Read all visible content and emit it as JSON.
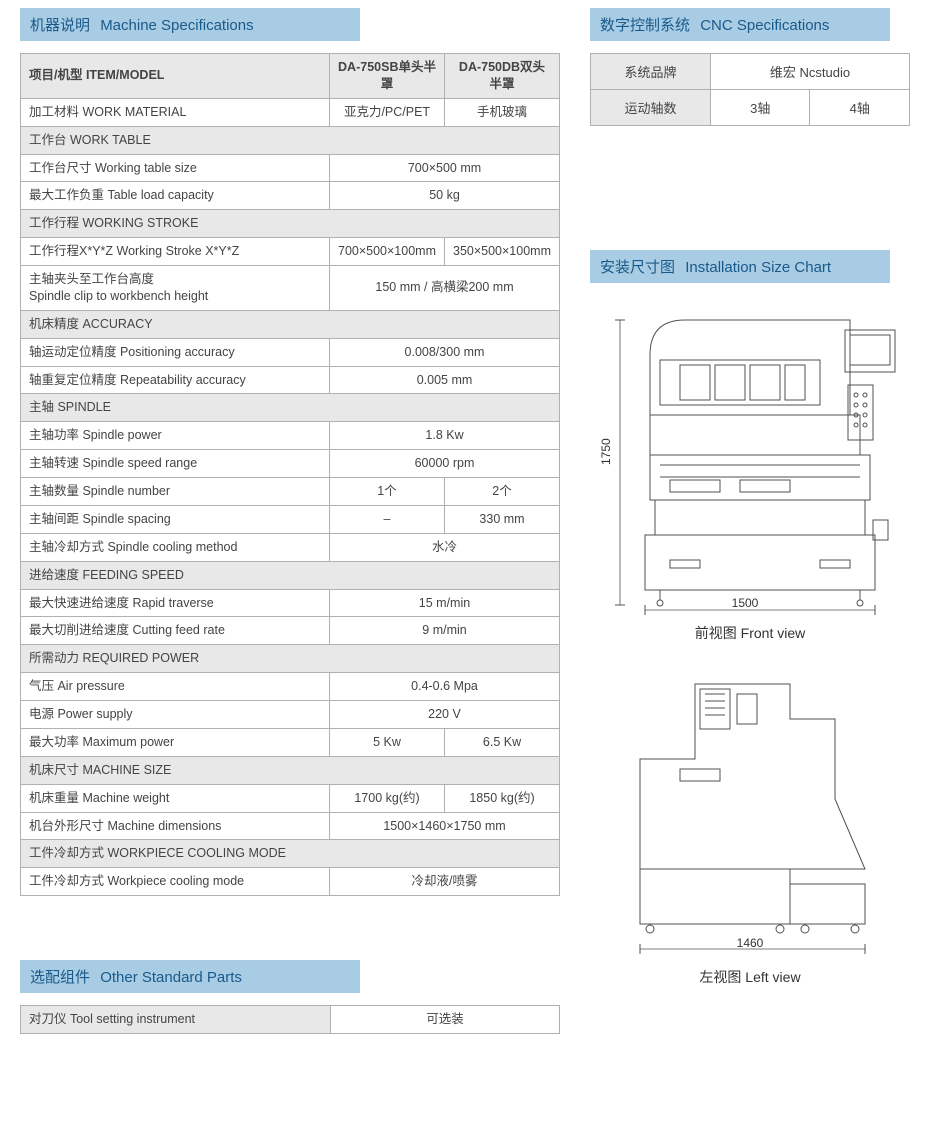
{
  "sections": {
    "machine_spec": {
      "cn": "机器说明",
      "en": "Machine Specifications"
    },
    "cnc_spec": {
      "cn": "数字控制系统",
      "en": "CNC Specifications"
    },
    "install_chart": {
      "cn": "安装尺寸图",
      "en": "Installation Size Chart"
    },
    "other_parts": {
      "cn": "选配组件",
      "en": "Other Standard Parts"
    }
  },
  "spec_table": {
    "header": {
      "col1": "项目/机型 ITEM/MODEL",
      "col2": "DA-750SB单头半罩",
      "col3": "DA-750DB双头半罩"
    },
    "rows": [
      {
        "type": "data",
        "label": "加工材料 WORK MATERIAL",
        "v1": "亚克力/PC/PET",
        "v2": "手机玻璃"
      },
      {
        "type": "section",
        "label": "工作台 WORK TABLE"
      },
      {
        "type": "merged",
        "label": "工作台尺寸 Working table size",
        "val": "700×500 mm"
      },
      {
        "type": "merged",
        "label": "最大工作负重 Table load capacity",
        "val": "50 kg"
      },
      {
        "type": "section",
        "label": "工作行程 WORKING STROKE"
      },
      {
        "type": "data",
        "label": "工作行程X*Y*Z   Working Stroke X*Y*Z",
        "v1": "700×500×100mm",
        "v2": "350×500×100mm"
      },
      {
        "type": "merged",
        "label": "主轴夹头至工作台高度\nSpindle clip to workbench height",
        "val": "150 mm / 高横梁200 mm"
      },
      {
        "type": "section",
        "label": "机床精度 ACCURACY"
      },
      {
        "type": "merged",
        "label": "轴运动定位精度 Positioning accuracy",
        "val": "0.008/300 mm"
      },
      {
        "type": "merged",
        "label": "轴重复定位精度 Repeatability accuracy",
        "val": "0.005 mm"
      },
      {
        "type": "section",
        "label": "主轴 SPINDLE"
      },
      {
        "type": "merged",
        "label": "主轴功率 Spindle power",
        "val": "1.8 Kw"
      },
      {
        "type": "merged",
        "label": "主轴转速 Spindle speed range",
        "val": "60000 rpm"
      },
      {
        "type": "data",
        "label": "主轴数量 Spindle number",
        "v1": "1个",
        "v2": "2个"
      },
      {
        "type": "data",
        "label": "主轴间距 Spindle spacing",
        "v1": "–",
        "v2": "330 mm"
      },
      {
        "type": "merged",
        "label": "主轴冷却方式 Spindle cooling method",
        "val": "水冷"
      },
      {
        "type": "section",
        "label": "进给速度 FEEDING SPEED"
      },
      {
        "type": "merged",
        "label": "最大快速进给速度 Rapid traverse",
        "val": "15 m/min"
      },
      {
        "type": "merged",
        "label": "最大切削进给速度 Cutting feed rate",
        "val": "9 m/min"
      },
      {
        "type": "section",
        "label": "所需动力 REQUIRED POWER"
      },
      {
        "type": "merged",
        "label": "气压 Air pressure",
        "val": "0.4-0.6 Mpa"
      },
      {
        "type": "merged",
        "label": "电源 Power supply",
        "val": "220 V"
      },
      {
        "type": "data",
        "label": "最大功率 Maximum power",
        "v1": "5 Kw",
        "v2": "6.5 Kw"
      },
      {
        "type": "section",
        "label": "机床尺寸 MACHINE SIZE"
      },
      {
        "type": "data",
        "label": "机床重量 Machine weight",
        "v1": "1700 kg(约)",
        "v2": "1850 kg(约)"
      },
      {
        "type": "merged",
        "label": "机台外形尺寸 Machine dimensions",
        "val": "1500×1460×1750 mm"
      },
      {
        "type": "section",
        "label": "工件冷却方式 WORKPIECE COOLING MODE"
      },
      {
        "type": "merged",
        "label": "工件冷却方式 Workpiece cooling mode",
        "val": "冷却液/喷雾"
      }
    ]
  },
  "other_parts_table": {
    "rows": [
      {
        "label": "对刀仪 Tool setting instrument",
        "val": "可选装"
      }
    ]
  },
  "cnc_table": {
    "rows": [
      {
        "label": "系统品牌",
        "vals": [
          "维宏 Ncstudio"
        ],
        "span": 2
      },
      {
        "label": "运动轴数",
        "vals": [
          "3轴",
          "4轴"
        ]
      }
    ]
  },
  "diagrams": {
    "front": {
      "caption": "前视图 Front view",
      "width_dim": "1500",
      "height_dim": "1750"
    },
    "left": {
      "caption": "左视图 Left view",
      "width_dim": "1460"
    }
  },
  "colors": {
    "header_bg": "#a8cce4",
    "header_text": "#1a5a8a",
    "border": "#b0b0b0",
    "section_bg": "#e8e8e8",
    "text": "#444444",
    "diagram_line": "#505050"
  }
}
